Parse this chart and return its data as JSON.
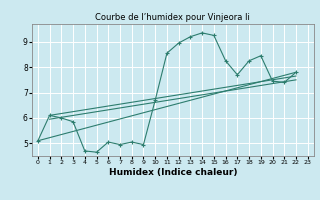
{
  "title": "Courbe de l’humidex pour Vinjeora Ii",
  "xlabel": "Humidex (Indice chaleur)",
  "bg_color": "#cce9f0",
  "grid_color": "#ffffff",
  "line_color": "#2d7d6e",
  "xlim": [
    -0.5,
    23.5
  ],
  "ylim": [
    4.5,
    9.7
  ],
  "yticks": [
    5,
    6,
    7,
    8,
    9
  ],
  "xticks": [
    0,
    1,
    2,
    3,
    4,
    5,
    6,
    7,
    8,
    9,
    10,
    11,
    12,
    13,
    14,
    15,
    16,
    17,
    18,
    19,
    20,
    21,
    22,
    23
  ],
  "series": [
    [
      0,
      5.1
    ],
    [
      1,
      6.1
    ],
    [
      2,
      6.0
    ],
    [
      3,
      5.85
    ],
    [
      4,
      4.7
    ],
    [
      5,
      4.65
    ],
    [
      6,
      5.05
    ],
    [
      7,
      4.95
    ],
    [
      8,
      5.05
    ],
    [
      9,
      4.95
    ],
    [
      10,
      6.7
    ],
    [
      11,
      8.55
    ],
    [
      12,
      8.95
    ],
    [
      13,
      9.2
    ],
    [
      14,
      9.35
    ],
    [
      15,
      9.25
    ],
    [
      16,
      8.25
    ],
    [
      17,
      7.7
    ],
    [
      18,
      8.25
    ],
    [
      19,
      8.45
    ],
    [
      20,
      7.45
    ],
    [
      21,
      7.4
    ],
    [
      22,
      7.8
    ]
  ],
  "line1": [
    [
      0,
      5.1
    ],
    [
      22,
      7.8
    ]
  ],
  "line2": [
    [
      1,
      6.1
    ],
    [
      22,
      7.65
    ]
  ],
  "line3": [
    [
      1,
      5.95
    ],
    [
      22,
      7.5
    ]
  ]
}
